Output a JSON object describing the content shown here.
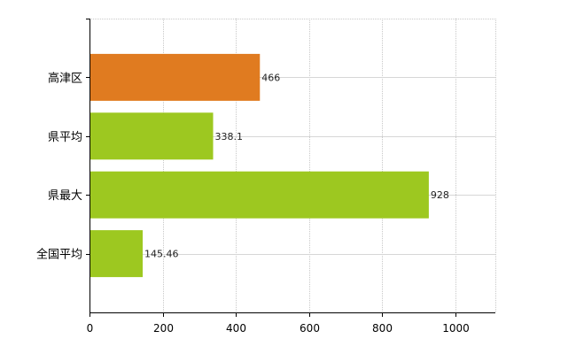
{
  "chart_data": {
    "type": "bar",
    "orientation": "horizontal",
    "categories": [
      "高津区",
      "県平均",
      "県最大",
      "全国平均"
    ],
    "values": [
      466,
      338.1,
      928,
      145.46
    ],
    "data_labels": [
      "466",
      "338.1",
      "928",
      "145.46"
    ],
    "bar_colors": [
      "#e07b20",
      "#9dc820",
      "#9dc820",
      "#9dc820"
    ],
    "xlim": [
      0,
      1110
    ],
    "xticks": [
      0,
      200,
      400,
      600,
      800,
      1000
    ],
    "xtick_labels": [
      "0",
      "200",
      "400",
      "600",
      "800",
      "1000"
    ],
    "grid": true,
    "legend": "none",
    "title": "",
    "xlabel": "",
    "ylabel": ""
  }
}
